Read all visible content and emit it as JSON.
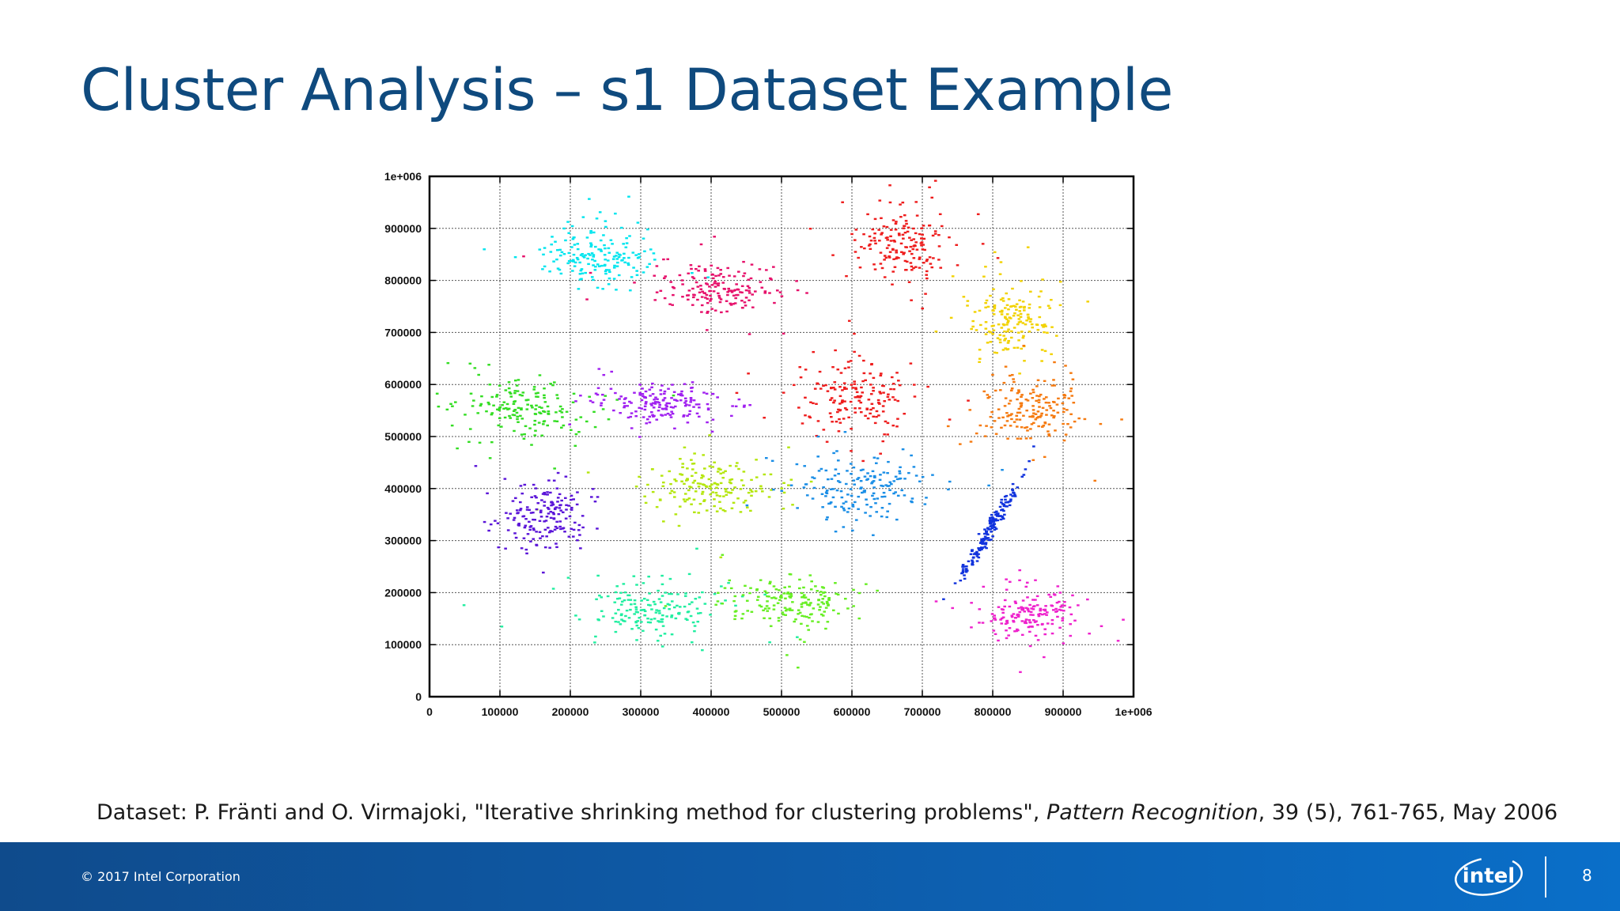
{
  "slide": {
    "title": "Cluster Analysis – s1 Dataset Example",
    "caption_prefix": "Dataset: P. Fränti and O. Virmajoki, \"Iterative shrinking method for clustering problems\", ",
    "caption_journal": "Pattern Recognition",
    "caption_suffix": ", 39 (5), 761-765, May 2006",
    "copyright": "© 2017 Intel Corporation",
    "page_number": "8",
    "logo_text": "intel",
    "logo_color": "#ffffff",
    "title_color": "#0f4a7e"
  },
  "chart_data": {
    "type": "scatter",
    "title": "",
    "xlabel": "",
    "ylabel": "",
    "xlim": [
      0,
      1000000
    ],
    "ylim": [
      0,
      1000000
    ],
    "grid": true,
    "legend": "none",
    "x_ticks": [
      "0",
      "100000",
      "200000",
      "300000",
      "400000",
      "500000",
      "600000",
      "700000",
      "800000",
      "900000",
      "1e+006"
    ],
    "y_ticks": [
      "0",
      "100000",
      "200000",
      "300000",
      "400000",
      "500000",
      "600000",
      "700000",
      "800000",
      "900000",
      "1e+006"
    ],
    "clusters": [
      {
        "center": [
          240000,
          850000
        ],
        "spread": [
          48000,
          34000
        ],
        "color": "#00e5ee"
      },
      {
        "center": [
          405000,
          785000
        ],
        "spread": [
          50000,
          30000
        ],
        "color": "#e6106a"
      },
      {
        "center": [
          670000,
          865000
        ],
        "spread": [
          42000,
          40000
        ],
        "color": "#ee1c1c"
      },
      {
        "center": [
          825000,
          725000
        ],
        "spread": [
          34000,
          42000
        ],
        "color": "#f2d200"
      },
      {
        "center": [
          135000,
          555000
        ],
        "spread": [
          55000,
          32000
        ],
        "color": "#33dd22"
      },
      {
        "center": [
          330000,
          565000
        ],
        "spread": [
          48000,
          22000
        ],
        "color": "#a020f0"
      },
      {
        "center": [
          605000,
          575000
        ],
        "spread": [
          50000,
          40000
        ],
        "color": "#ee1c1c"
      },
      {
        "center": [
          855000,
          550000
        ],
        "spread": [
          45000,
          42000
        ],
        "color": "#f57a10"
      },
      {
        "center": [
          400000,
          405000
        ],
        "spread": [
          52000,
          32000
        ],
        "color": "#b4e60c"
      },
      {
        "center": [
          615000,
          405000
        ],
        "spread": [
          52000,
          36000
        ],
        "color": "#1a8ee6"
      },
      {
        "center": [
          165000,
          350000
        ],
        "spread": [
          38000,
          36000
        ],
        "color": "#5a14d8"
      },
      {
        "center": [
          795000,
          320000
        ],
        "spread": [
          22000,
          50000
        ],
        "color": "#1133dd"
      },
      {
        "center": [
          315000,
          165000
        ],
        "spread": [
          55000,
          30000
        ],
        "color": "#20eea0"
      },
      {
        "center": [
          510000,
          180000
        ],
        "spread": [
          52000,
          30000
        ],
        "color": "#66ee22"
      },
      {
        "center": [
          855000,
          160000
        ],
        "spread": [
          40000,
          30000
        ],
        "color": "#ee22cc"
      }
    ]
  }
}
